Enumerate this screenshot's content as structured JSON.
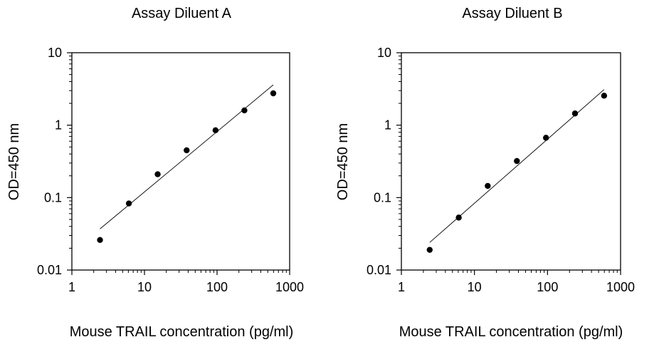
{
  "chart_data": [
    {
      "type": "scatter",
      "title": "Assay Diluent A",
      "xlabel": "Mouse TRAIL concentration (pg/ml)",
      "ylabel": "OD=450 nm",
      "xscale": "log",
      "yscale": "log",
      "xlim": [
        1,
        1000
      ],
      "ylim": [
        0.01,
        10
      ],
      "xticks": [
        "1",
        "10",
        "100",
        "1000"
      ],
      "yticks": [
        "0.01",
        "0.1",
        "1",
        "10"
      ],
      "grid": false,
      "series": [
        {
          "x": [
            2.44,
            6.1,
            15.2,
            38.1,
            95.3,
            238,
            595
          ],
          "y": [
            0.026,
            0.083,
            0.21,
            0.45,
            0.85,
            1.6,
            2.75
          ]
        }
      ],
      "fit_line": {
        "x": [
          2.44,
          595
        ],
        "y": [
          0.037,
          3.6
        ]
      }
    },
    {
      "type": "scatter",
      "title": "Assay Diluent B",
      "xlabel": "Mouse TRAIL concentration (pg/ml)",
      "ylabel": "OD=450 nm",
      "xscale": "log",
      "yscale": "log",
      "xlim": [
        1,
        1000
      ],
      "ylim": [
        0.01,
        10
      ],
      "xticks": [
        "1",
        "10",
        "100",
        "1000"
      ],
      "yticks": [
        "0.01",
        "0.1",
        "1",
        "10"
      ],
      "grid": false,
      "series": [
        {
          "x": [
            2.44,
            6.1,
            15.2,
            38.1,
            95.3,
            238,
            595
          ],
          "y": [
            0.019,
            0.053,
            0.145,
            0.32,
            0.67,
            1.45,
            2.55
          ]
        }
      ],
      "fit_line": {
        "x": [
          2.44,
          595
        ],
        "y": [
          0.024,
          3.1
        ]
      }
    }
  ]
}
